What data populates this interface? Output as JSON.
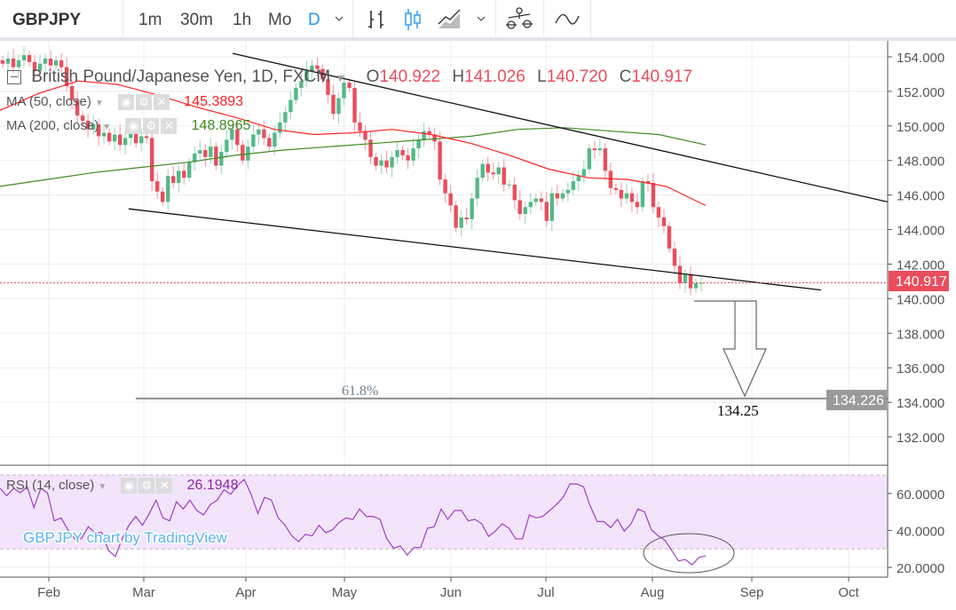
{
  "toolbar": {
    "symbol": "GBPJPY",
    "intervals": [
      "1m",
      "30m",
      "1h",
      "Mo",
      "D"
    ],
    "active_interval": "D",
    "accent": "#2196f3"
  },
  "legend": {
    "title": "British Pound/Japanese Yen, 1D, FXCM",
    "o_label": "O",
    "o": "140.922",
    "h_label": "H",
    "h": "141.026",
    "l_label": "L",
    "l": "140.720",
    "c_label": "C",
    "c": "140.917",
    "ma50_label": "MA (50, close)",
    "ma50_value": "145.3893",
    "ma200_label": "MA (200, close)",
    "ma200_value": "148.8965",
    "rsi_label": "RSI (14, close)",
    "rsi_value": "26.1948"
  },
  "watermark": "GBPJPY chart by TradingView",
  "chart_data": {
    "type": "candlestick",
    "symbol": "GBPJPY",
    "x_tick_labels": [
      "Feb",
      "Mar",
      "Apr",
      "May",
      "Jun",
      "Jul",
      "Aug",
      "Sep",
      "Oct"
    ],
    "y_tick_labels": [
      "154.000",
      "152.000",
      "150.000",
      "148.000",
      "146.000",
      "144.000",
      "142.000",
      "140.000",
      "138.000",
      "136.000",
      "134.000",
      "132.000"
    ],
    "ylim": [
      132,
      154
    ],
    "grid": true,
    "colors": {
      "up": "#53b987",
      "down": "#eb4d5c",
      "ma50": "#ff1f1f",
      "ma200": "#3f8a22",
      "rsi": "#a13dbf"
    },
    "closes": [
      153.6,
      153.9,
      153.4,
      153.8,
      154.1,
      153.7,
      153.2,
      153.6,
      153.9,
      153.5,
      153.8,
      153.4,
      152.3,
      151.5,
      150.6,
      150.3,
      149.8,
      150.1,
      149.4,
      149.6,
      149.1,
      149.5,
      148.9,
      149.3,
      149.8,
      149.0,
      149.4,
      149.3,
      146.8,
      146.2,
      145.6,
      147.1,
      146.7,
      147.4,
      147.0,
      147.9,
      148.4,
      148.6,
      148.2,
      148.8,
      147.7,
      148.5,
      149.2,
      149.8,
      148.9,
      148.0,
      148.8,
      149.5,
      149.8,
      149.3,
      148.8,
      149.6,
      150.2,
      150.8,
      151.5,
      152.2,
      152.6,
      153.2,
      153.5,
      153.3,
      152.7,
      151.8,
      150.7,
      151.6,
      152.5,
      152.2,
      150.2,
      149.7,
      149.2,
      148.2,
      147.7,
      148.0,
      147.6,
      148.2,
      148.6,
      148.3,
      148.0,
      148.7,
      149.2,
      149.7,
      149.5,
      149.1,
      146.9,
      146.1,
      145.4,
      144.1,
      144.7,
      144.6,
      145.8,
      147.0,
      147.8,
      147.3,
      147.2,
      147.6,
      146.6,
      146.6,
      145.7,
      144.9,
      145.3,
      145.6,
      145.8,
      145.6,
      144.5,
      146.1,
      145.8,
      146.1,
      146.3,
      146.8,
      147.1,
      147.5,
      148.7,
      148.6,
      148.7,
      147.4,
      146.4,
      146.3,
      145.8,
      146.1,
      145.6,
      145.3,
      146.8,
      146.7,
      145.3,
      144.7,
      144.2,
      142.9,
      141.9,
      140.9,
      141.4,
      140.6,
      140.9,
      140.917
    ],
    "ma50": [
      150.9,
      151.9,
      152.6,
      152.4,
      151.8,
      151.1,
      150.5,
      149.8,
      149.5,
      149.6,
      149.8,
      149.5,
      149.0,
      148.3,
      147.5,
      147.0,
      146.9,
      146.5,
      145.39
    ],
    "ma200": [
      146.5,
      146.9,
      147.3,
      147.6,
      147.9,
      148.3,
      148.6,
      148.8,
      149.0,
      149.2,
      149.4,
      149.8,
      149.9,
      149.7,
      149.5,
      148.9
    ],
    "last_price": "140.917",
    "upper_trendline": [
      154.2,
      145.6
    ],
    "lower_trendline": [
      145.2,
      140.5
    ],
    "fib_level": {
      "label": "61.8%",
      "price": 134.226,
      "axis_label": "134.226"
    },
    "target_label": "134.25",
    "rsi": {
      "ylim": [
        15,
        75
      ],
      "band": [
        30,
        70
      ],
      "y_tick_labels": [
        "60.0000",
        "40.0000",
        "20.0000"
      ],
      "y_ticks": [
        60,
        40,
        20
      ],
      "values": [
        62.8,
        58.8,
        62.8,
        60.4,
        63.6,
        52.4,
        62.8,
        60.4,
        45.2,
        46.8,
        40.4,
        35.5,
        35.5,
        42,
        38.8,
        38.8,
        29.1,
        25.9,
        35.5,
        42.8,
        47.6,
        42.8,
        49.2,
        56.4,
        46.8,
        45.2,
        55.6,
        51.6,
        56.4,
        50.8,
        48.4,
        54,
        56.4,
        62,
        59.6,
        64.4,
        67.6,
        59.6,
        49.2,
        58,
        56.4,
        46.8,
        42.8,
        37.1,
        33.9,
        37.9,
        37.1,
        42.8,
        38.8,
        40.4,
        44.4,
        46.8,
        46,
        51.6,
        47.6,
        47.6,
        46,
        35.5,
        30.4,
        31.6,
        26.7,
        30.7,
        30.7,
        41.2,
        42,
        51.6,
        46,
        50.8,
        50.8,
        45.2,
        46,
        43.6,
        36.8,
        39.6,
        43.6,
        41.2,
        35.5,
        35.5,
        48.4,
        46.8,
        47.6,
        50.8,
        54,
        58,
        65.2,
        65.2,
        63.6,
        53.2,
        44.8,
        44.8,
        41.6,
        46,
        39.6,
        43.6,
        51.6,
        50,
        40.4,
        37.1,
        34.7,
        29.1,
        23.5,
        24.3,
        21.4,
        25.4,
        26.19
      ]
    }
  }
}
